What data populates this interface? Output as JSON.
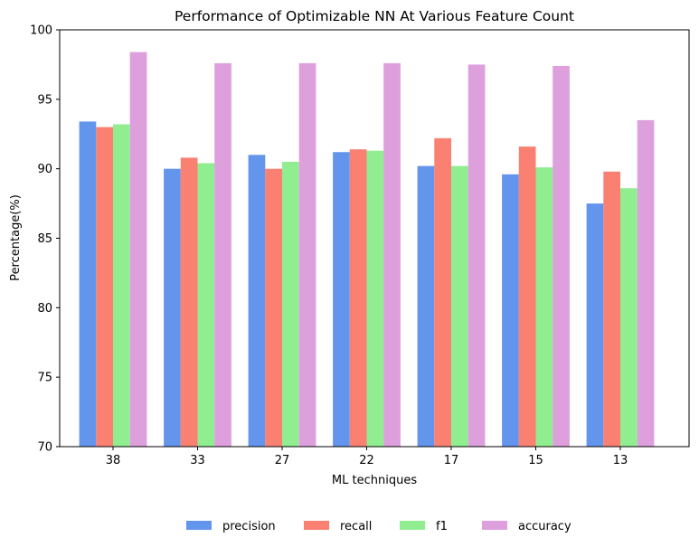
{
  "chart_data": {
    "type": "bar",
    "title": "Performance of Optimizable NN At Various Feature Count",
    "xlabel": "ML techniques",
    "ylabel": "Percentage(%)",
    "ylim": [
      70,
      100
    ],
    "yticks": [
      "70",
      "75",
      "80",
      "85",
      "90",
      "95",
      "100"
    ],
    "categories": [
      "38",
      "33",
      "27",
      "22",
      "17",
      "15",
      "13"
    ],
    "series": [
      {
        "name": "precision",
        "color": "#6495ED",
        "values": [
          93.4,
          90.0,
          91.0,
          91.2,
          90.2,
          89.6,
          87.5
        ]
      },
      {
        "name": "recall",
        "color": "#FA8072",
        "values": [
          93.0,
          90.8,
          90.0,
          91.4,
          92.2,
          91.6,
          89.8
        ]
      },
      {
        "name": "f1",
        "color": "#90EE90",
        "values": [
          93.2,
          90.4,
          90.5,
          91.3,
          90.2,
          90.1,
          88.6
        ]
      },
      {
        "name": "accuracy",
        "color": "#DDA0DD",
        "values": [
          98.4,
          97.6,
          97.6,
          97.6,
          97.5,
          97.4,
          93.5
        ]
      }
    ],
    "legend_position": "bottom-center",
    "grid": false
  }
}
